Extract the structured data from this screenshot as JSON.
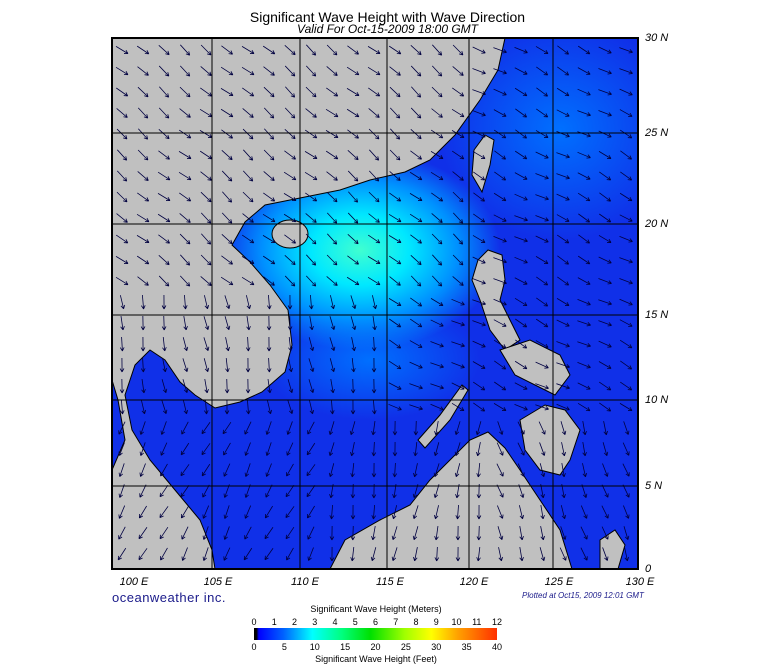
{
  "header": {
    "title": "Significant Wave Height with Wave Direction",
    "subtitle": "Valid For Oct-15-2009 18:00 GMT"
  },
  "map": {
    "lon_labels": [
      "100 E",
      "105 E",
      "110 E",
      "115 E",
      "120 E",
      "125 E",
      "130 E"
    ],
    "lat_labels": [
      "30 N",
      "25 N",
      "20 N",
      "15 N",
      "10 N",
      "5 N",
      "0"
    ],
    "colors": {
      "land": "#c0c0c0",
      "sea_low": "#1030e8",
      "sea_mid": "#0090ff",
      "sea_high": "#30ffe0"
    }
  },
  "footer": {
    "brand": "oceanweather inc.",
    "plotted": "Plotted at Oct15, 2009 12:01 GMT"
  },
  "legend": {
    "title_m": "Significant Wave Height (Meters)",
    "title_ft": "Significant Wave Height (Feet)",
    "meters": [
      "0",
      "1",
      "2",
      "3",
      "4",
      "5",
      "6",
      "7",
      "8",
      "9",
      "10",
      "11",
      "12"
    ],
    "feet": [
      "0",
      "5",
      "10",
      "15",
      "20",
      "25",
      "30",
      "35",
      "40"
    ]
  }
}
